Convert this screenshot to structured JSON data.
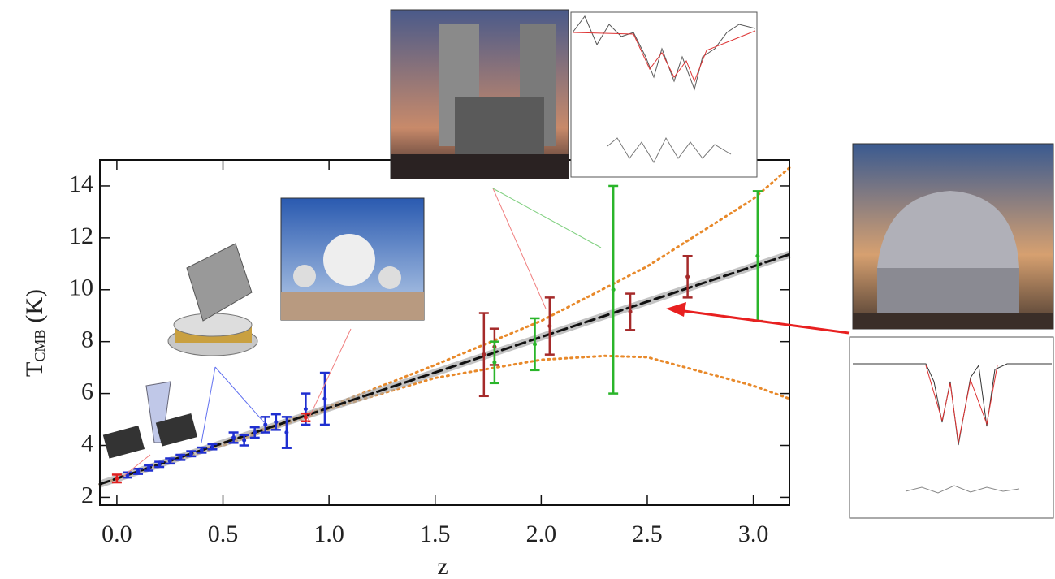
{
  "chart_data": {
    "type": "errorbar",
    "x_label": "z",
    "y_label": "T",
    "y_label_sub": "CMB",
    "y_label_unit": "(K)",
    "xlim": [
      -0.08,
      3.17
    ],
    "ylim": [
      1.7,
      15
    ],
    "xticks": [
      {
        "value": 0,
        "label": "0.0"
      },
      {
        "value": 0.5,
        "label": "0.5"
      },
      {
        "value": 1,
        "label": "1.0"
      },
      {
        "value": 1.5,
        "label": "1.5"
      },
      {
        "value": 2,
        "label": "2.0"
      },
      {
        "value": 2.5,
        "label": "2.5"
      },
      {
        "value": 3,
        "label": "3.0"
      }
    ],
    "yticks": [
      2,
      4,
      6,
      8,
      10,
      12,
      14
    ],
    "lines": [
      {
        "color": "#e8892a",
        "style": "dotted",
        "x": [
          -0.08,
          0,
          0.5,
          1,
          1.5,
          2,
          2.5,
          3,
          3.17
        ],
        "values": [
          2.5,
          2.725,
          4.1,
          5.5,
          7.1,
          8.8,
          10.9,
          13.5,
          14.7
        ]
      },
      {
        "color": "#e8892a",
        "style": "dotted",
        "x": [
          -0.08,
          0,
          0.5,
          1,
          1.5,
          2,
          2.3,
          2.5,
          3,
          3.17
        ],
        "values": [
          2.5,
          2.725,
          4.0,
          5.4,
          6.6,
          7.3,
          7.45,
          7.4,
          6.3,
          5.8
        ]
      },
      {
        "color": "#111111",
        "style": "dashed",
        "x": [
          -0.08,
          0,
          0.5,
          1,
          1.5,
          2,
          2.5,
          3,
          3.17
        ],
        "values": [
          2.51,
          2.725,
          4.09,
          5.45,
          6.81,
          8.18,
          9.54,
          10.9,
          11.36
        ]
      }
    ],
    "series": [
      {
        "color": "#1f2fd0",
        "x": [
          0.05,
          0.1,
          0.15,
          0.2,
          0.25,
          0.3,
          0.35,
          0.4,
          0.45,
          0.55,
          0.6,
          0.65,
          0.7,
          0.75,
          0.8,
          0.89,
          0.98
        ],
        "values": [
          2.86,
          3.0,
          3.13,
          3.27,
          3.4,
          3.54,
          3.68,
          3.82,
          3.95,
          4.3,
          4.2,
          4.5,
          4.8,
          4.9,
          4.5,
          5.4,
          5.8
        ],
        "errors": [
          0.1,
          0.1,
          0.1,
          0.1,
          0.1,
          0.1,
          0.1,
          0.1,
          0.1,
          0.2,
          0.2,
          0.2,
          0.3,
          0.3,
          0.6,
          0.6,
          1.0
        ]
      },
      {
        "color": "#e02020",
        "x": [
          0,
          0.89
        ],
        "values": [
          2.725,
          5.08
        ],
        "errors": [
          0.15,
          0.15
        ]
      },
      {
        "color": "#a52a2a",
        "x": [
          1.73,
          1.78,
          2.04,
          2.42,
          2.69
        ],
        "values": [
          7.5,
          7.8,
          8.6,
          9.15,
          10.5
        ],
        "errors": [
          1.6,
          0.7,
          1.1,
          0.7,
          0.8
        ]
      },
      {
        "color": "#2ab52a",
        "x": [
          1.78,
          1.97,
          2.34,
          3.02
        ],
        "values": [
          7.2,
          7.9,
          10.0,
          11.3
        ],
        "errors": [
          0.8,
          1.0,
          4.0,
          2.5
        ]
      }
    ]
  }
}
